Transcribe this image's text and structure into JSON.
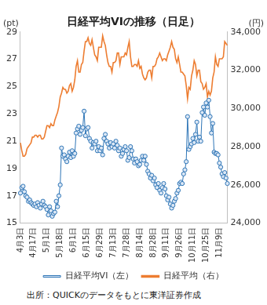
{
  "chart_data": {
    "type": "line",
    "title": "日経平均VIの推移（日足）",
    "ylabel": "(pt)",
    "y2label": "(円)",
    "source": "出所：QUICKのデータをもとに東洋証券作成",
    "categories": [
      "4月3日",
      null,
      null,
      null,
      null,
      null,
      null,
      null,
      null,
      null,
      "4月17日",
      null,
      null,
      null,
      null,
      null,
      null,
      null,
      null,
      null,
      "5月1日",
      null,
      null,
      null,
      null,
      null,
      null,
      null,
      null,
      null,
      "5月18日",
      null,
      null,
      null,
      null,
      null,
      null,
      null,
      null,
      null,
      "6月1日",
      null,
      null,
      null,
      null,
      null,
      null,
      null,
      null,
      null,
      "6月15日",
      null,
      null,
      null,
      null,
      null,
      null,
      null,
      null,
      null,
      "6月29日",
      null,
      null,
      null,
      null,
      null,
      null,
      null,
      null,
      null,
      "7月13日",
      null,
      null,
      null,
      null,
      null,
      null,
      null,
      null,
      null,
      "7月28日",
      null,
      null,
      null,
      null,
      null,
      null,
      null,
      null,
      null,
      "8月14日",
      null,
      null,
      null,
      null,
      null,
      null,
      null,
      null,
      null,
      "8月28日",
      null,
      null,
      null,
      null,
      null,
      null,
      null,
      null,
      null,
      "9月11日",
      null,
      null,
      null,
      null,
      null,
      null,
      null,
      null,
      null,
      "9月26日",
      null,
      null,
      null,
      null,
      null,
      null,
      null,
      null,
      null,
      "10月11日",
      null,
      null,
      null,
      null,
      null,
      null,
      null,
      null,
      null,
      "10月25日",
      null,
      null,
      null,
      null,
      null,
      null,
      null,
      null,
      null,
      "11月9日",
      null,
      null,
      null,
      null,
      null,
      null
    ],
    "series": [
      {
        "name": "日経平均VI（左）",
        "color": "#2e75b6",
        "marker": "circle",
        "axis": "y",
        "values": [
          17.2,
          17.6,
          17.7,
          17.3,
          17.0,
          16.9,
          16.6,
          16.7,
          16.5,
          16.4,
          16.3,
          16.4,
          16.2,
          16.5,
          16.3,
          16.1,
          16.4,
          16.6,
          16.3,
          16.2,
          16.0,
          15.6,
          16.2,
          15.9,
          15.5,
          15.7,
          15.8,
          16.6,
          16.2,
          17.0,
          17.8,
          20.5,
          19.9,
          20.0,
          19.7,
          19.5,
          19.9,
          20.2,
          19.8,
          20.3,
          19.9,
          20.1,
          21.6,
          21.9,
          22.1,
          21.5,
          21.8,
          22.0,
          23.2,
          21.4,
          21.9,
          22.0,
          21.2,
          21.0,
          20.5,
          20.9,
          20.8,
          21.0,
          20.3,
          20.6,
          20.3,
          20.5,
          20.0,
          21.2,
          21.5,
          21.0,
          20.8,
          20.5,
          20.9,
          20.6,
          20.8,
          20.5,
          21.0,
          20.7,
          20.3,
          20.5,
          19.9,
          20.1,
          20.4,
          20.6,
          20.3,
          19.6,
          19.8,
          20.6,
          20.3,
          19.7,
          19.4,
          19.7,
          19.5,
          19.2,
          19.3,
          19.6,
          19.9,
          19.6,
          19.9,
          19.3,
          18.8,
          18.6,
          18.3,
          18.5,
          18.1,
          18.3,
          17.8,
          17.6,
          17.9,
          17.4,
          17.2,
          17.6,
          17.9,
          17.5,
          17.0,
          16.7,
          16.9,
          16.4,
          16.1,
          16.3,
          16.6,
          16.8,
          17.2,
          17.4,
          17.9,
          18.0,
          17.9,
          18.6,
          18.9,
          19.5,
          22.8,
          20.4,
          20.6,
          20.8,
          21.2,
          20.9,
          21.5,
          22.4,
          21.0,
          21.3,
          21.0,
          23.1,
          23.5,
          22.9,
          23.8,
          23.5,
          24.0,
          22.8,
          21.6,
          22.3,
          20.2,
          20.1,
          20.1,
          20.0,
          19.4,
          19.1,
          18.6,
          18.4,
          18.7,
          18.3,
          17.9
        ]
      },
      {
        "name": "日経平均（右）",
        "color": "#ed7d31",
        "marker": "none",
        "axis": "y2",
        "values": [
          28200,
          27800,
          27500,
          27500,
          27600,
          27900,
          28000,
          28100,
          28200,
          28500,
          28500,
          28600,
          28600,
          28500,
          28600,
          28600,
          28400,
          28400,
          28500,
          28800,
          29100,
          29100,
          29000,
          29200,
          29100,
          29100,
          29400,
          29600,
          29800,
          30100,
          30600,
          30800,
          31100,
          31000,
          31000,
          30800,
          30900,
          31200,
          31300,
          30900,
          31100,
          31500,
          32200,
          32500,
          31900,
          31900,
          32300,
          32400,
          33000,
          33500,
          33500,
          33700,
          33400,
          33300,
          33600,
          33200,
          32800,
          32700,
          32500,
          33200,
          33200,
          33200,
          33800,
          33500,
          33300,
          32800,
          32400,
          32200,
          32200,
          31900,
          32400,
          32400,
          32500,
          32900,
          32900,
          32300,
          32700,
          32700,
          32700,
          32900,
          32800,
          33200,
          33500,
          32700,
          32200,
          32200,
          32300,
          32300,
          32200,
          32500,
          32100,
          32200,
          31800,
          31600,
          31500,
          31600,
          31900,
          32000,
          32000,
          31600,
          32200,
          32200,
          32300,
          32600,
          32700,
          32900,
          32700,
          32500,
          32600,
          32600,
          32500,
          32800,
          33000,
          33200,
          33500,
          33200,
          33100,
          32600,
          32400,
          32700,
          32300,
          31900,
          31900,
          31800,
          31700,
          31200,
          30500,
          31100,
          31000,
          31700,
          32000,
          32500,
          32300,
          31700,
          32000,
          32000,
          31400,
          31300,
          31000,
          31100,
          31300,
          30600,
          30900,
          30700,
          30900,
          31600,
          31900,
          32700,
          32300,
          32200,
          32600,
          32600,
          32600,
          32700,
          33500,
          33400,
          33300
        ]
      }
    ],
    "ylim": [
      15,
      29
    ],
    "yticks": [
      15,
      17,
      19,
      21,
      23,
      25,
      27,
      29
    ],
    "y2lim": [
      24000,
      34000
    ],
    "y2ticks": [
      {
        "value": 24000,
        "label": "24,000"
      },
      {
        "value": 26000,
        "label": "26,000"
      },
      {
        "value": 28000,
        "label": "28,000"
      },
      {
        "value": 30000,
        "label": "30,000"
      },
      {
        "value": 32000,
        "label": "32,000"
      },
      {
        "value": 34000,
        "label": "34,000"
      }
    ],
    "grid": false,
    "legend": "bottom"
  }
}
